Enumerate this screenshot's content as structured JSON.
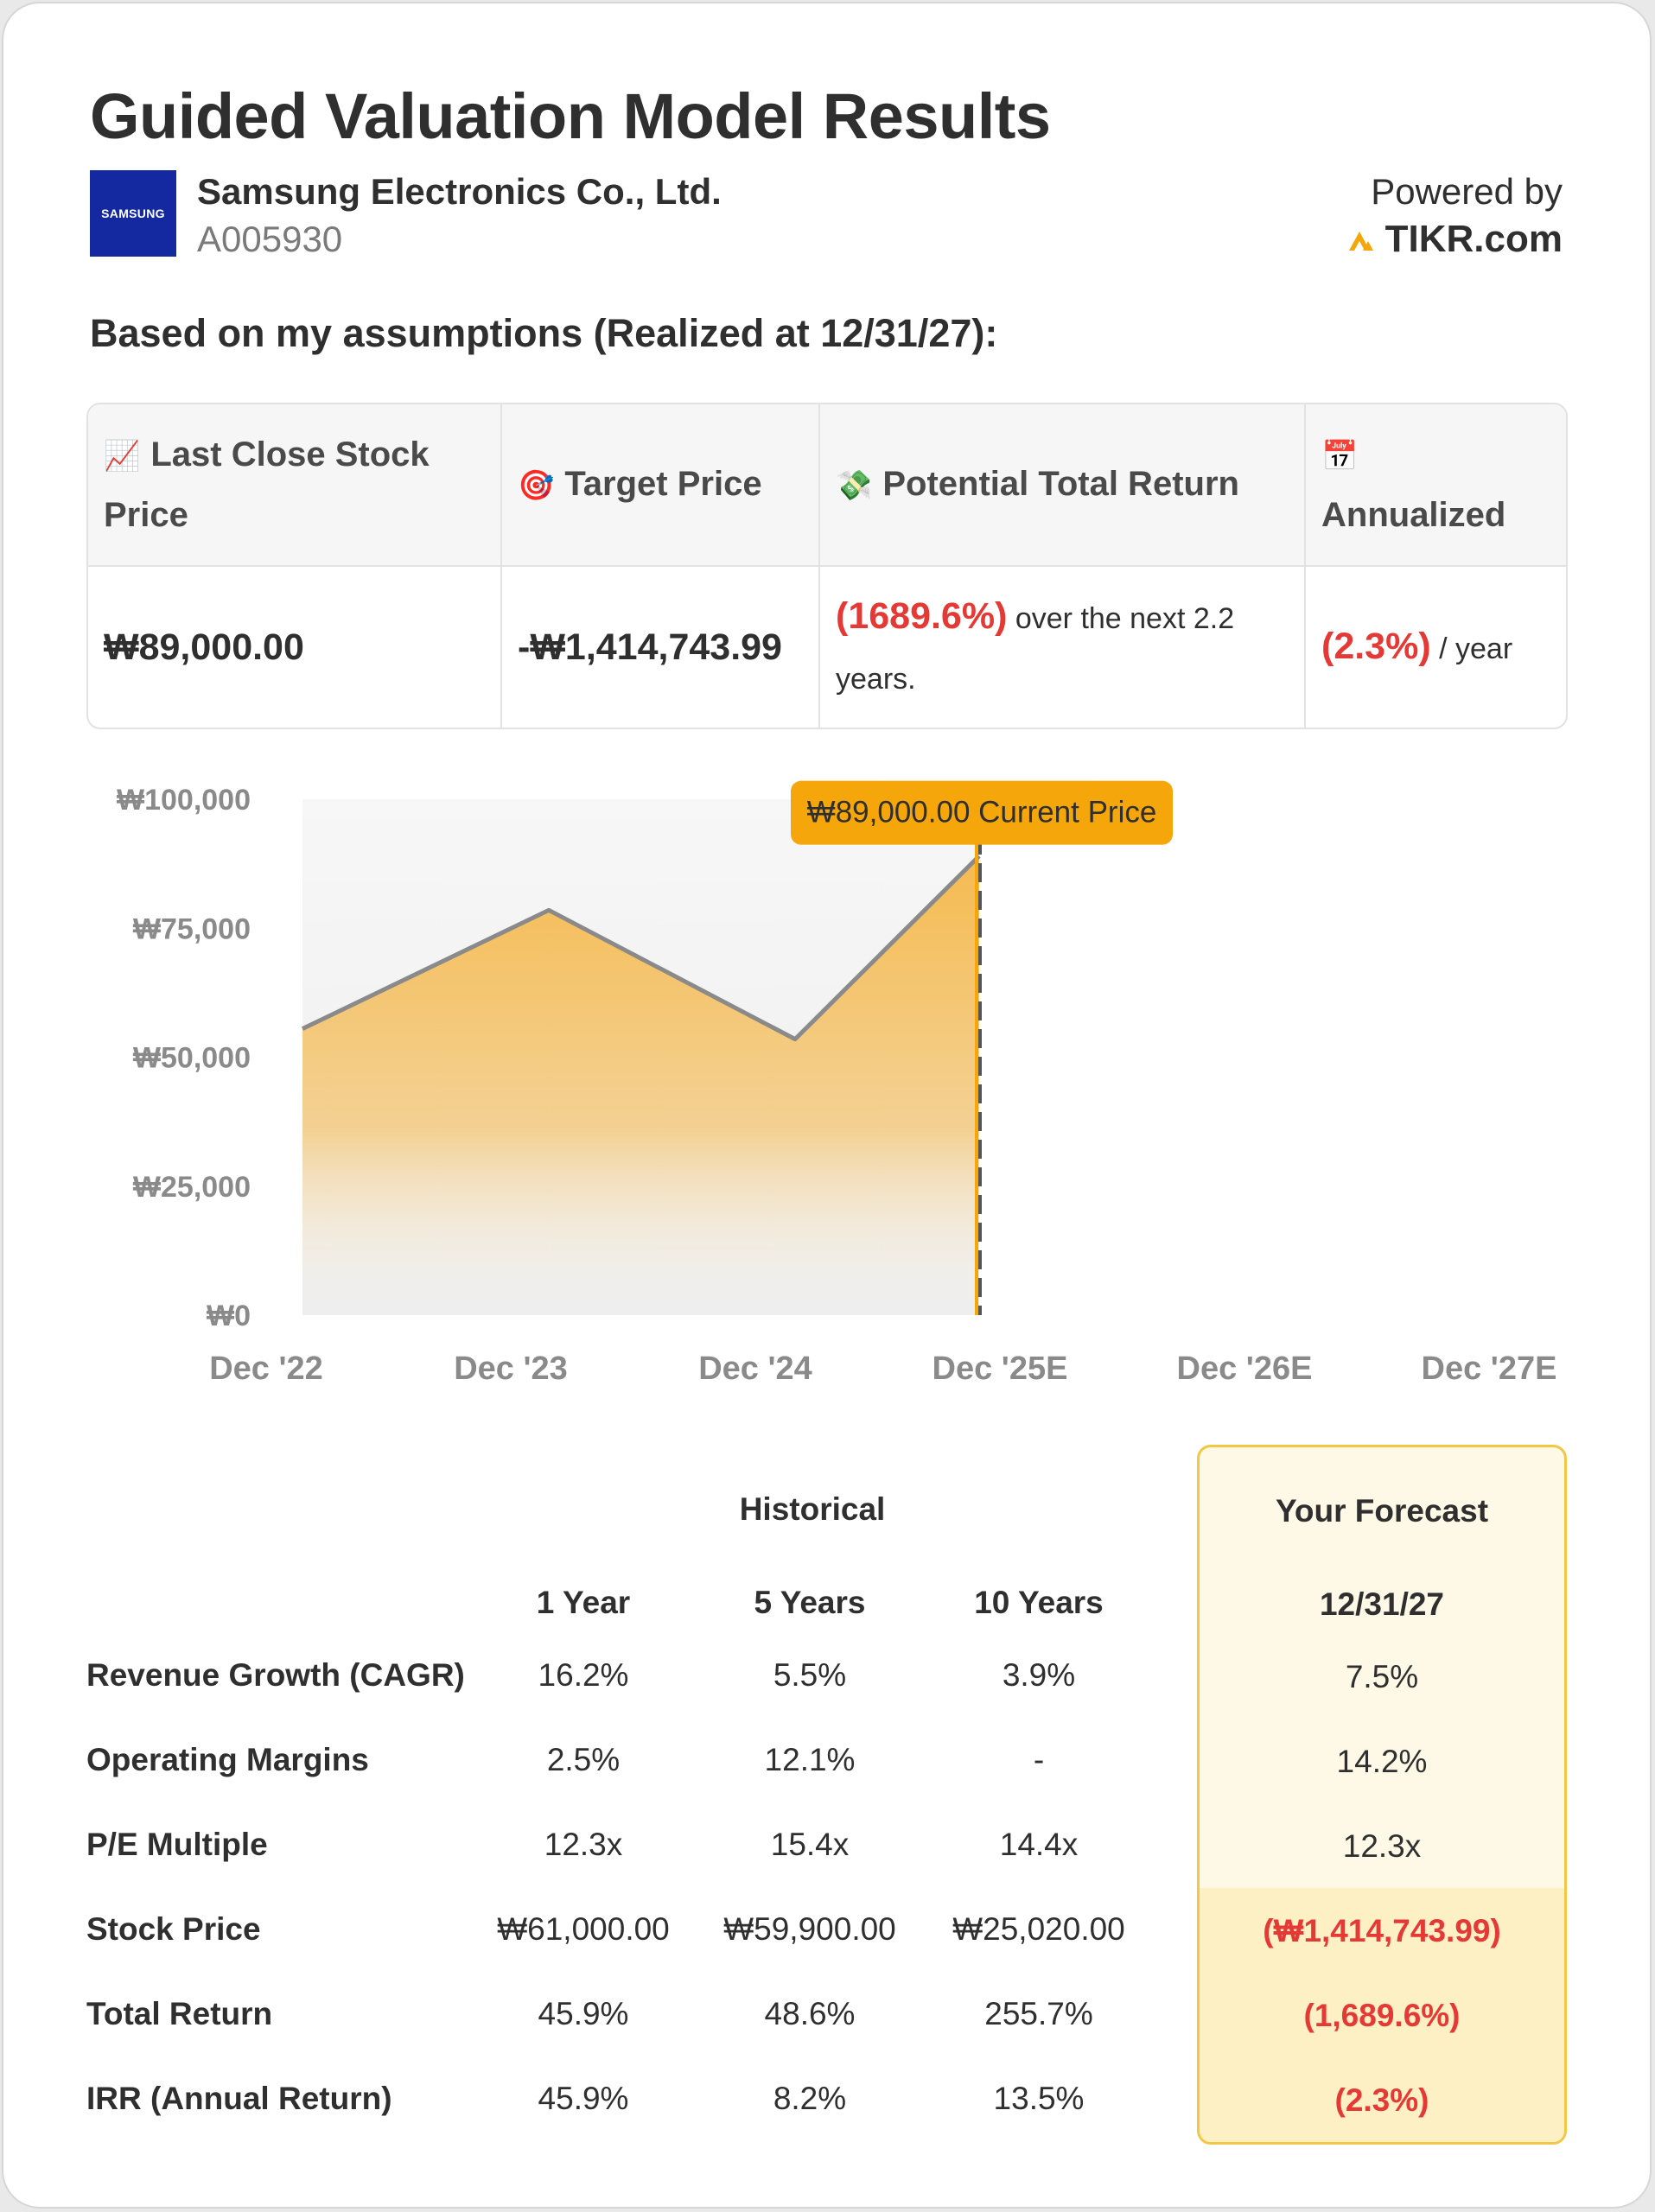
{
  "header": {
    "title": "Guided Valuation Model Results",
    "logo_text": "SAMSUNG",
    "company_name": "Samsung Electronics Co., Ltd.",
    "ticker": "A005930",
    "powered_by": "Powered by",
    "brand": "TIKR.com"
  },
  "assumptions_heading": "Based on my assumptions (Realized at 12/31/27):",
  "summary": {
    "headers": [
      {
        "icon": "📈",
        "label": "Last Close Stock Price"
      },
      {
        "icon": "🎯",
        "label": "Target Price"
      },
      {
        "icon": "💸",
        "label": "Potential Total Return"
      },
      {
        "icon": "📅",
        "label": "Annualized"
      }
    ],
    "last_close": "₩89,000.00",
    "target_price": "-₩1,414,743.99",
    "total_return_value": "(1689.6%)",
    "total_return_suffix": " over the next 2.2 years.",
    "annualized_value": "(2.3%)",
    "annualized_suffix": " / year"
  },
  "chart_data": {
    "type": "area",
    "categories": [
      "Dec '22",
      "Dec '23",
      "Dec '24",
      "Dec '25E",
      "Dec '26E",
      "Dec '27E"
    ],
    "series": [
      {
        "values": [
          55500,
          78500,
          53500,
          89000,
          null,
          null
        ]
      }
    ],
    "ylim": [
      0,
      100000
    ],
    "y_ticks": [
      "₩0",
      "₩25,000",
      "₩50,000",
      "₩75,000",
      "₩100,000"
    ],
    "y_tick_values": [
      0,
      25000,
      50000,
      75000,
      100000
    ],
    "current_price_marker": {
      "x": "Dec '25E",
      "value": 89000,
      "label": "₩89,000.00 Current Price"
    },
    "colors": {
      "fill": "#f5b748",
      "line": "#8a8a8a",
      "marker": "#f5a60a"
    }
  },
  "metrics": {
    "historical_label": "Historical",
    "forecast_label": "Your Forecast",
    "columns": [
      "1 Year",
      "5 Years",
      "10 Years",
      "12/31/27"
    ],
    "rows": [
      {
        "label": "Revenue Growth (CAGR)",
        "values": [
          "16.2%",
          "5.5%",
          "3.9%",
          "7.5%"
        ]
      },
      {
        "label": "Operating Margins",
        "values": [
          "2.5%",
          "12.1%",
          "-",
          "14.2%"
        ]
      },
      {
        "label": "P/E Multiple",
        "values": [
          "12.3x",
          "15.4x",
          "14.4x",
          "12.3x"
        ]
      },
      {
        "label": "Stock Price",
        "values": [
          "₩61,000.00",
          "₩59,900.00",
          "₩25,020.00",
          "(₩1,414,743.99)"
        ]
      },
      {
        "label": "Total Return",
        "values": [
          "45.9%",
          "48.6%",
          "255.7%",
          "(1,689.6%)"
        ]
      },
      {
        "label": "IRR (Annual Return)",
        "values": [
          "45.9%",
          "8.2%",
          "13.5%",
          "(2.3%)"
        ]
      }
    ]
  }
}
